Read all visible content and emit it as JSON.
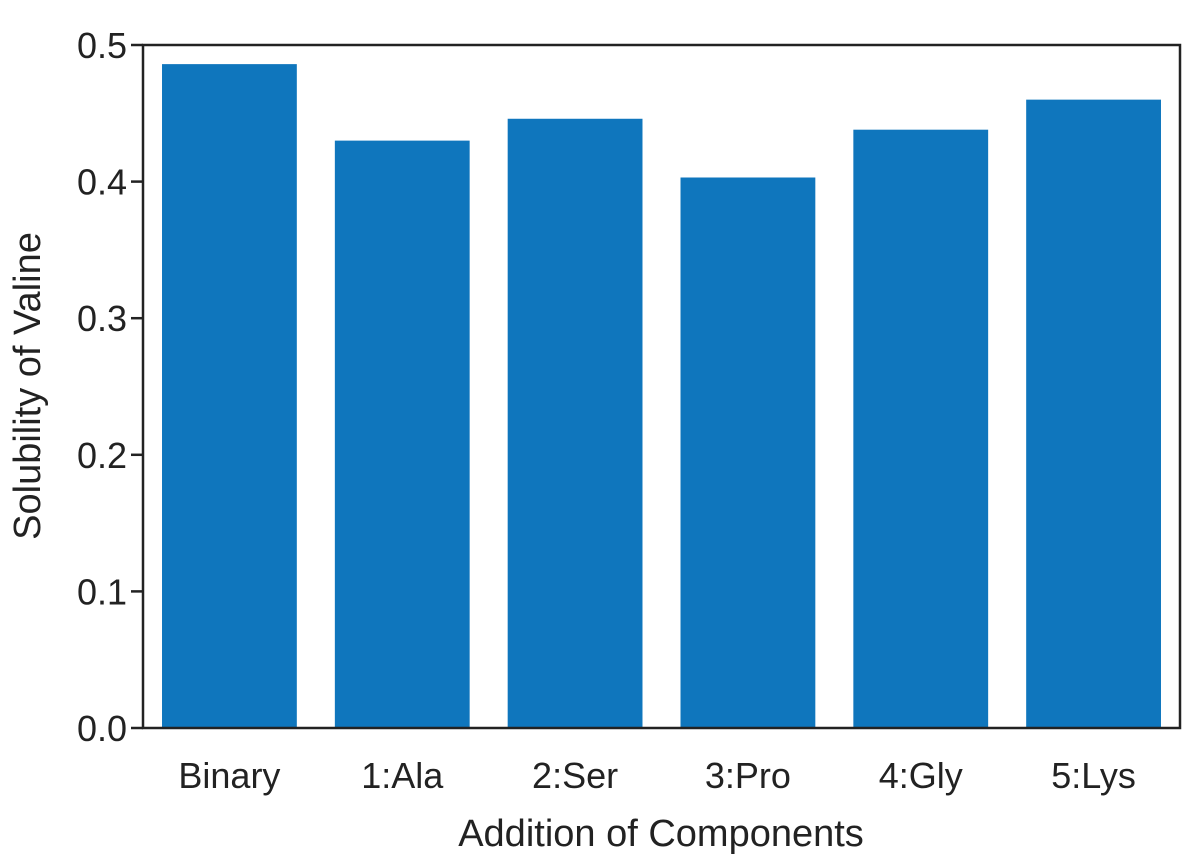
{
  "chart_data": {
    "type": "bar",
    "title": "",
    "xlabel": "Addition of Components",
    "ylabel": "Solubility of Valine",
    "categories": [
      "Binary",
      "1:Ala",
      "2:Ser",
      "3:Pro",
      "4:Gly",
      "5:Lys"
    ],
    "values": [
      0.486,
      0.43,
      0.446,
      0.403,
      0.438,
      0.46
    ],
    "ylim": [
      0.0,
      0.5
    ],
    "yticks": [
      "0.0",
      "0.1",
      "0.2",
      "0.3",
      "0.4",
      "0.5"
    ],
    "grid": false,
    "bar_color": "#0f76bd"
  }
}
